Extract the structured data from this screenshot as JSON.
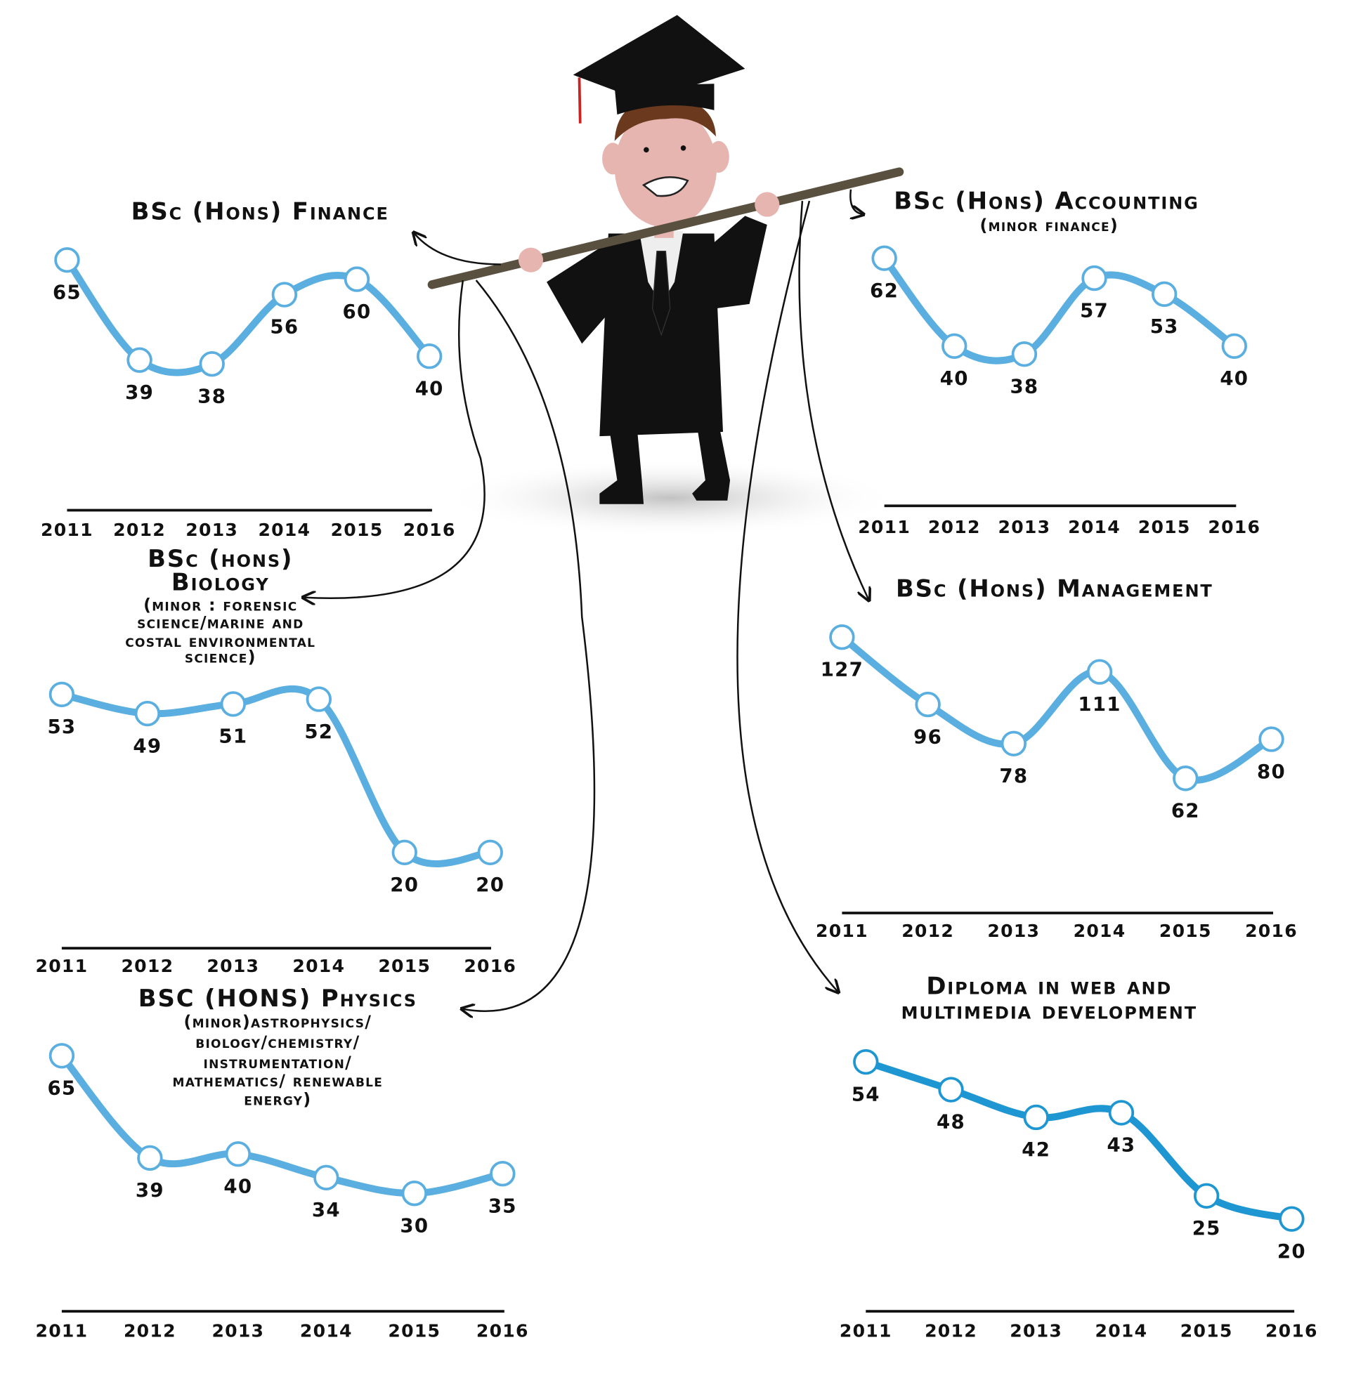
{
  "colors": {
    "line": "#5aafe0",
    "line_dark": "#1e96d2",
    "axis": "#111111",
    "pole": "#5a5040",
    "gown": "#111111"
  },
  "chart_data": [
    {
      "id": "finance",
      "type": "line",
      "title_lines": [
        "BSc (Hons) Finance"
      ],
      "subtitle_lines": [],
      "categories": [
        "2011",
        "2012",
        "2013",
        "2014",
        "2015",
        "2016"
      ],
      "values": [
        65,
        39,
        38,
        56,
        60,
        40
      ],
      "ylim": [
        0,
        65
      ],
      "grid": false
    },
    {
      "id": "accounting",
      "type": "line",
      "title_lines": [
        "BSc (Hons) Accounting"
      ],
      "subtitle_lines": [
        "(minor finance)"
      ],
      "categories": [
        "2011",
        "2012",
        "2013",
        "2014",
        "2015",
        "2016"
      ],
      "values": [
        62,
        40,
        38,
        57,
        53,
        40
      ],
      "ylim": [
        0,
        62
      ],
      "grid": false
    },
    {
      "id": "biology",
      "type": "line",
      "title_lines": [
        "BSc (hons)",
        "Biology"
      ],
      "subtitle_lines": [
        "(minor : forensic",
        "science/marine and",
        "costal environmental",
        "science)"
      ],
      "categories": [
        "2011",
        "2012",
        "2013",
        "2014",
        "2015",
        "2016"
      ],
      "values": [
        53,
        49,
        51,
        52,
        20,
        20
      ],
      "ylim": [
        0,
        53
      ],
      "grid": false
    },
    {
      "id": "management",
      "type": "line",
      "title_lines": [
        "BSc (Hons) Management"
      ],
      "subtitle_lines": [],
      "categories": [
        "2011",
        "2012",
        "2013",
        "2014",
        "2015",
        "2016"
      ],
      "values": [
        127,
        96,
        78,
        111,
        62,
        80
      ],
      "ylim": [
        0,
        127
      ],
      "grid": false
    },
    {
      "id": "physics",
      "type": "line",
      "title_lines": [
        "BSC (HONS) Physics"
      ],
      "subtitle_lines": [
        "(minor)astrophysics/",
        "biology/chemistry/",
        "instrumentation/",
        "mathematics/ renewable",
        "energy)"
      ],
      "categories": [
        "2011",
        "2012",
        "2013",
        "2014",
        "2015",
        "2016"
      ],
      "values": [
        65,
        39,
        40,
        34,
        30,
        35
      ],
      "ylim": [
        0,
        65
      ],
      "grid": false
    },
    {
      "id": "diploma",
      "type": "line",
      "title_lines": [
        "Diploma in web and",
        "multimedia development"
      ],
      "subtitle_lines": [],
      "categories": [
        "2011",
        "2012",
        "2013",
        "2014",
        "2015",
        "2016"
      ],
      "values": [
        54,
        48,
        42,
        43,
        25,
        20
      ],
      "ylim": [
        0,
        54
      ],
      "grid": false
    }
  ]
}
